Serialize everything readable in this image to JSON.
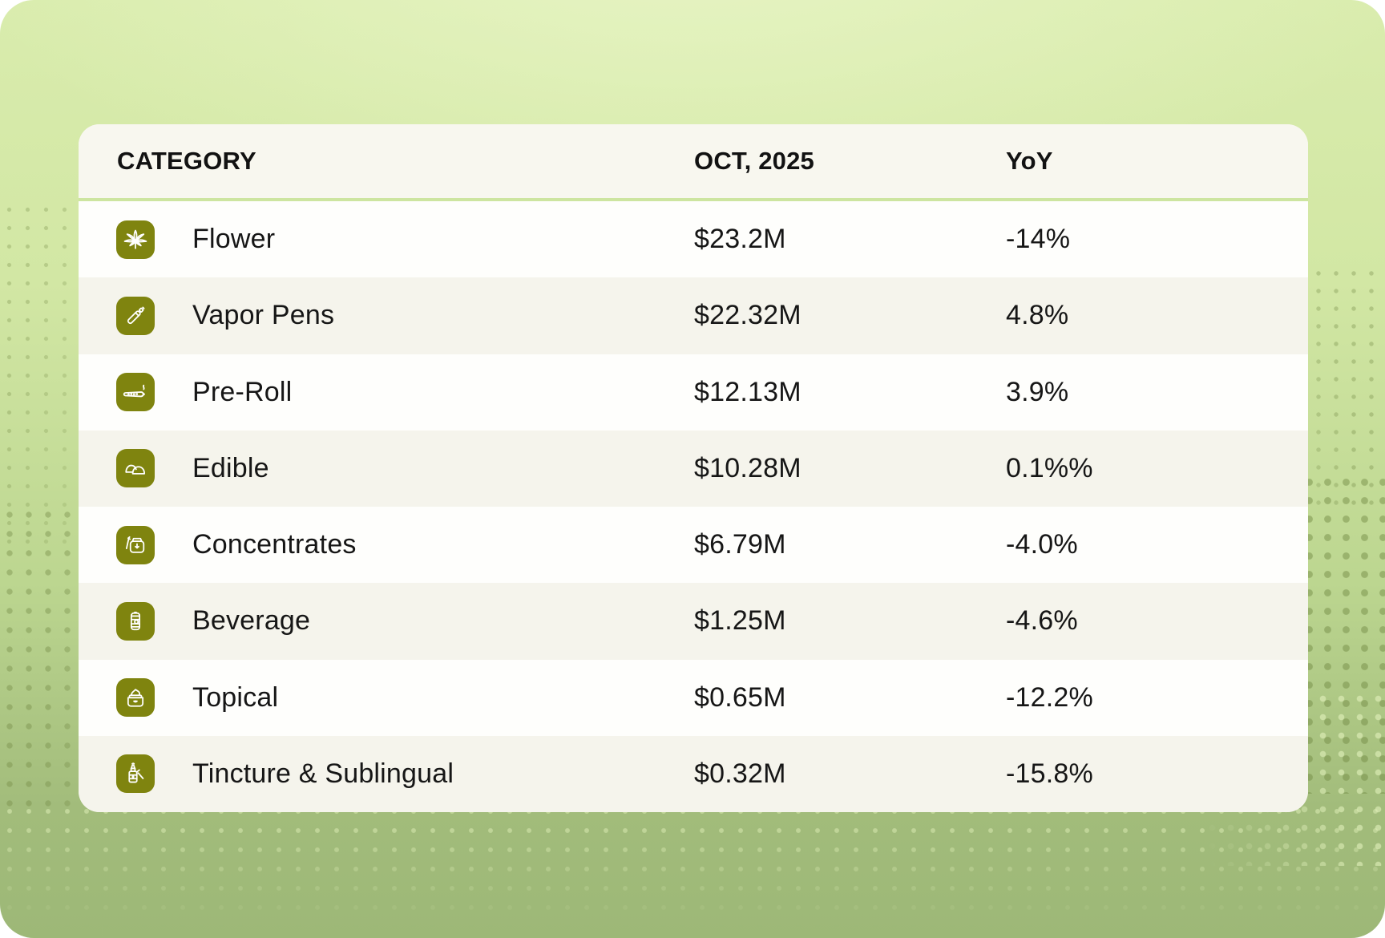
{
  "table": {
    "columns": [
      "CATEGORY",
      "OCT, 2025",
      "YoY"
    ],
    "rows": [
      {
        "icon": "cannabis-leaf-icon",
        "category": "Flower",
        "oct_2025": "$23.2M",
        "yoy": "-14%"
      },
      {
        "icon": "vape-pen-icon",
        "category": "Vapor Pens",
        "oct_2025": "$22.32M",
        "yoy": "4.8%"
      },
      {
        "icon": "pre-roll-icon",
        "category": "Pre-Roll",
        "oct_2025": "$12.13M",
        "yoy": "3.9%"
      },
      {
        "icon": "gummy-icon",
        "category": "Edible",
        "oct_2025": "$10.28M",
        "yoy": "0.1%%"
      },
      {
        "icon": "concentrate-jar-icon",
        "category": "Concentrates",
        "oct_2025": "$6.79M",
        "yoy": "-4.0%"
      },
      {
        "icon": "beverage-can-icon",
        "category": "Beverage",
        "oct_2025": "$1.25M",
        "yoy": "-4.6%"
      },
      {
        "icon": "topical-jar-icon",
        "category": "Topical",
        "oct_2025": "$0.65M",
        "yoy": "-12.2%"
      },
      {
        "icon": "tincture-bottle-icon",
        "category": "Tincture & Sublingual",
        "oct_2025": "$0.32M",
        "yoy": "-15.8%"
      }
    ]
  },
  "chart_data": {
    "type": "table",
    "title": "",
    "columns": [
      "CATEGORY",
      "OCT, 2025",
      "YoY"
    ],
    "rows": [
      [
        "Flower",
        "$23.2M",
        "-14%"
      ],
      [
        "Vapor Pens",
        "$22.32M",
        "4.8%"
      ],
      [
        "Pre-Roll",
        "$12.13M",
        "3.9%"
      ],
      [
        "Edible",
        "$10.28M",
        "0.1%%"
      ],
      [
        "Concentrates",
        "$6.79M",
        "-4.0%"
      ],
      [
        "Beverage",
        "$1.25M",
        "-4.6%"
      ],
      [
        "Topical",
        "$0.65M",
        "-12.2%"
      ],
      [
        "Tincture & Sublingual",
        "$0.32M",
        "-15.8%"
      ]
    ]
  },
  "colors": {
    "icon_bg": "#7f840f",
    "card_bg": "#f8f7ef",
    "row_white": "#fefefc",
    "row_alt": "#f5f4ec",
    "header_separator": "#cde5a0",
    "background_top": "#d9ecad",
    "background_bottom": "#9db877",
    "text": "#141414"
  }
}
